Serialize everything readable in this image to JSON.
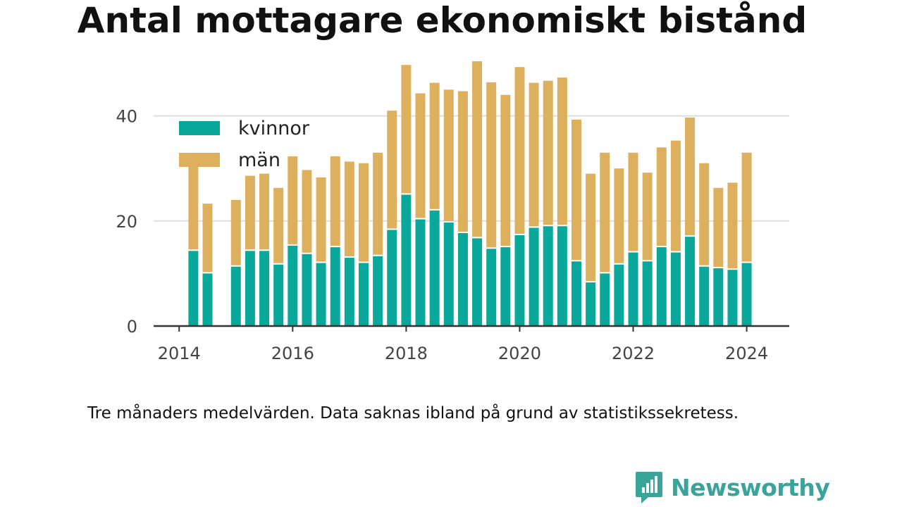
{
  "chart_data": {
    "type": "bar",
    "stacked": true,
    "title": "Antal mottagare ekonomiskt bistånd",
    "xlabel": "",
    "ylabel": "",
    "ylim": [
      0,
      50
    ],
    "yticks": [
      0,
      20,
      40
    ],
    "x_tick_labels": [
      "2014",
      "2016",
      "2018",
      "2020",
      "2022",
      "2024"
    ],
    "x_tick_values": [
      2014.0,
      2016.0,
      2018.0,
      2020.0,
      2022.0,
      2024.0
    ],
    "xlim": [
      2013.55,
      2024.75
    ],
    "grid": "horizontal",
    "legend_position": "top-left",
    "x": [
      2014.25,
      2014.5,
      2015.0,
      2015.25,
      2015.5,
      2015.75,
      2016.0,
      2016.25,
      2016.5,
      2016.75,
      2017.0,
      2017.25,
      2017.5,
      2017.75,
      2018.0,
      2018.25,
      2018.5,
      2018.75,
      2019.0,
      2019.25,
      2019.5,
      2019.75,
      2020.0,
      2020.25,
      2020.5,
      2020.75,
      2021.0,
      2021.25,
      2021.5,
      2021.75,
      2022.0,
      2022.25,
      2022.5,
      2022.75,
      2023.0,
      2023.25,
      2023.5,
      2023.75,
      2024.0
    ],
    "series": [
      {
        "name": "kvinnor",
        "color": "#0aa89b",
        "values": [
          14.3,
          10.0,
          11.3,
          14.3,
          14.3,
          11.7,
          15.3,
          13.7,
          12.0,
          15.0,
          13.0,
          12.0,
          13.3,
          18.3,
          25.0,
          20.3,
          22.0,
          19.7,
          17.7,
          16.7,
          14.7,
          15.0,
          17.3,
          18.7,
          19.0,
          19.0,
          12.3,
          8.3,
          10.0,
          11.7,
          14.0,
          12.3,
          15.0,
          14.0,
          17.0,
          11.3,
          11.0,
          10.7,
          12.0
        ]
      },
      {
        "name": "män",
        "color": "#ddb05e",
        "values": [
          17.7,
          13.3,
          12.7,
          14.3,
          14.7,
          14.6,
          17.0,
          16.0,
          16.3,
          17.3,
          18.3,
          19.0,
          19.7,
          22.7,
          24.7,
          24.0,
          24.3,
          25.3,
          27.0,
          33.7,
          31.7,
          29.0,
          32.0,
          27.6,
          27.7,
          28.3,
          27.0,
          20.7,
          23.0,
          18.3,
          19.0,
          16.9,
          19.0,
          21.3,
          22.7,
          19.7,
          15.3,
          16.6,
          21.0
        ]
      }
    ]
  },
  "note": "Tre månaders medelvärden. Data saknas ibland på grund av statistikssekretess.",
  "brand": {
    "name": "Newsworthy",
    "color": "#3aa39a",
    "icon": "newsworthy-logo-icon"
  },
  "colors": {
    "axis": "#333333",
    "grid": "#dddddd",
    "title": "#111111"
  }
}
